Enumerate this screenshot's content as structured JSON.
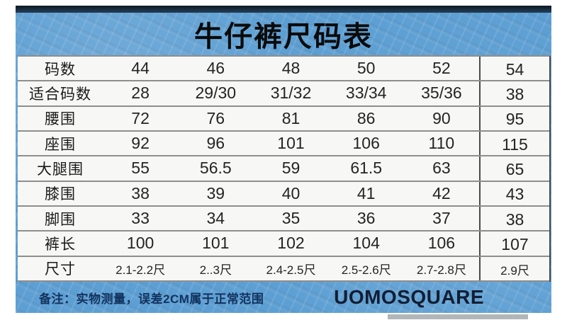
{
  "title": "牛仔裤尺码表",
  "table": {
    "rows": [
      {
        "label": "码数",
        "values": [
          "44",
          "46",
          "48",
          "50",
          "52",
          "54"
        ]
      },
      {
        "label": "适合码数",
        "values": [
          "28",
          "29/30",
          "31/32",
          "33/34",
          "35/36",
          "38"
        ]
      },
      {
        "label": "腰围",
        "values": [
          "72",
          "76",
          "81",
          "86",
          "90",
          "95"
        ]
      },
      {
        "label": "座围",
        "values": [
          "92",
          "96",
          "101",
          "106",
          "110",
          "115"
        ]
      },
      {
        "label": "大腿围",
        "values": [
          "55",
          "56.5",
          "59",
          "61.5",
          "63",
          "65"
        ]
      },
      {
        "label": "膝围",
        "values": [
          "38",
          "39",
          "40",
          "41",
          "42",
          "43"
        ]
      },
      {
        "label": "脚围",
        "values": [
          "33",
          "34",
          "35",
          "36",
          "37",
          "38"
        ]
      },
      {
        "label": "裤长",
        "values": [
          "100",
          "101",
          "102",
          "104",
          "106",
          "107"
        ]
      },
      {
        "label": "尺寸",
        "values": [
          "2.1-2.2尺",
          "2..3尺",
          "2.4-2.5尺",
          "2.5-2.6尺",
          "2.7-2.8尺",
          "2.9尺"
        ],
        "small": true
      }
    ]
  },
  "footer": {
    "note": "备注：实物测量，误差2CM属于正常范围",
    "brand": "UOMOSQUARE"
  },
  "colors": {
    "panel_blue": "#5d9fd3",
    "top_bar": "#16222e",
    "table_bg": "#f7f7f5",
    "row_line": "#8e8e8e",
    "column_divider": "#4a4a4a",
    "text_dark": "#242424",
    "note_text": "#12325e",
    "brand_text": "#111e33"
  }
}
